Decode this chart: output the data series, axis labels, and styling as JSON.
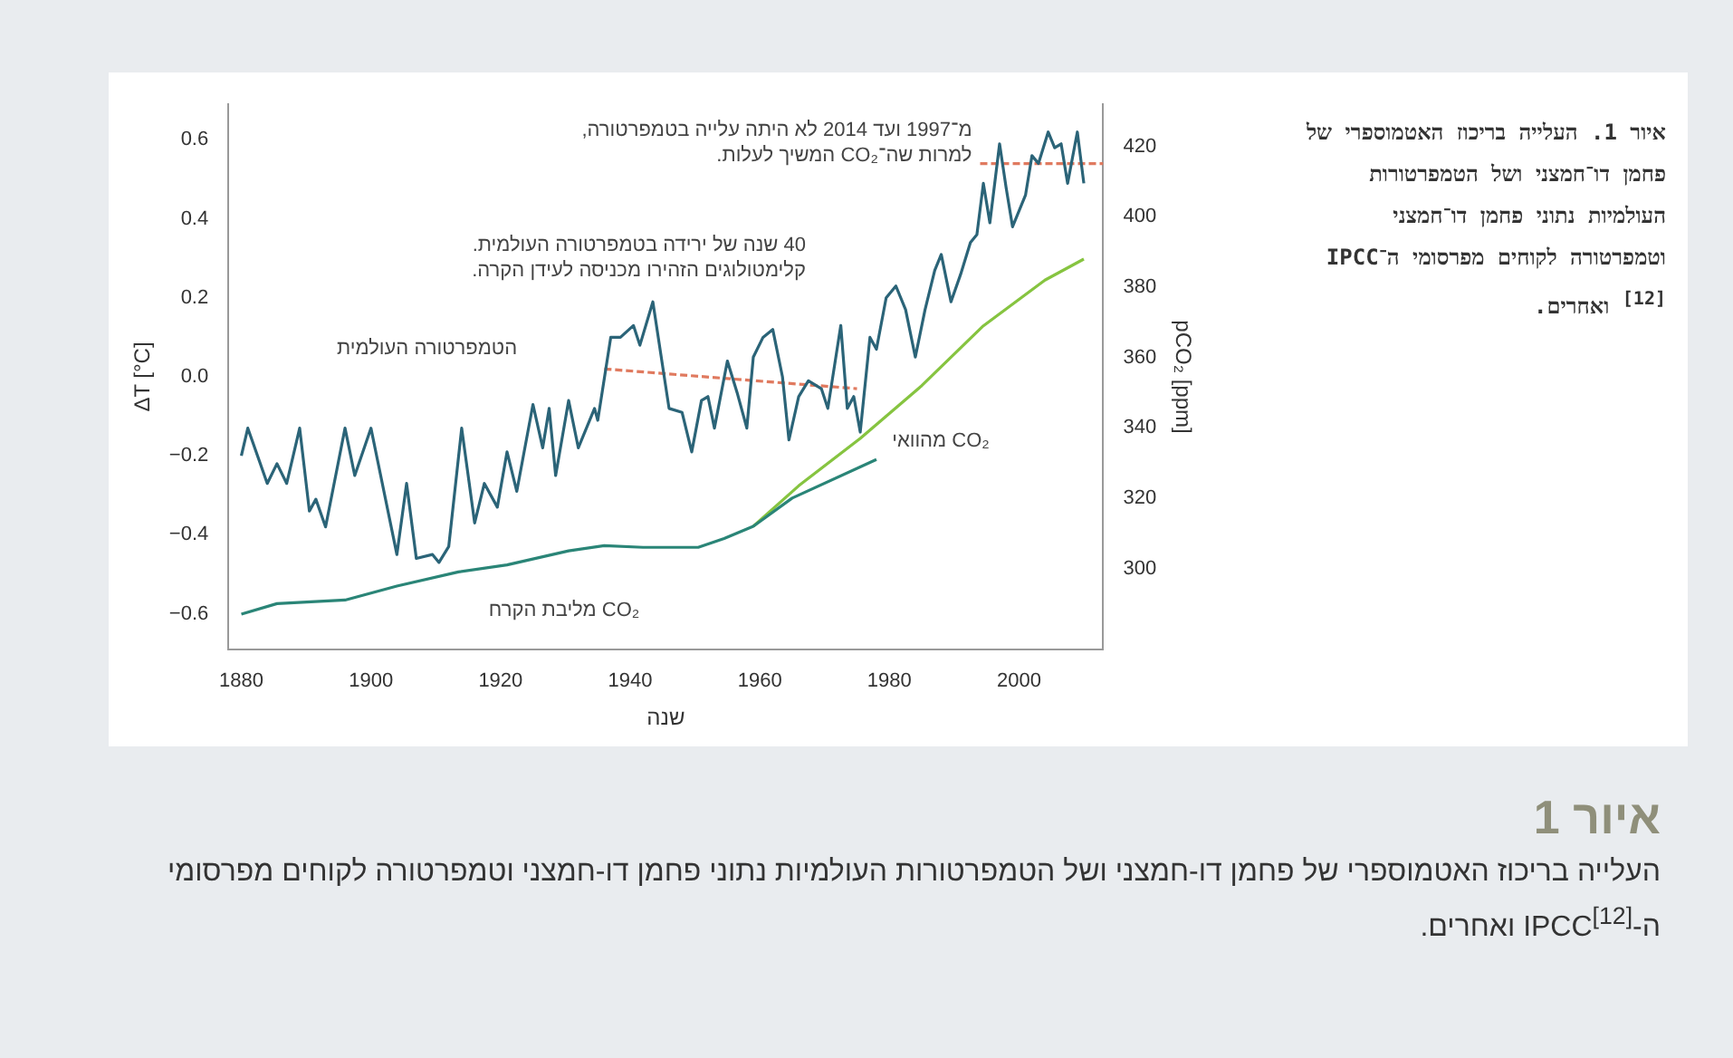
{
  "chart_data": {
    "type": "line",
    "title": "איור 1",
    "subtitle": "העלייה בריכוז האטמוספרי של פחמן דו-חמצני ושל הטמפרטורות העולמיות נתוני פחמן דו-חמצני וטמפרטורה לקוחים מפרסומי ה-$^{[12]}$IPCC ואחרים.",
    "xlabel": "שנה",
    "ylabel": "ΔT [°C]",
    "y2label": "pCO₂ [ppm]",
    "annotations": [
      "מ־1997 ועד 2014 לא היתה עלייה בטמפרטורה,\nלמרות שה־CO₂ המשיך לעלות.",
      "40 שנה של ירידה בטמפרטורה העולמית.\nקלימטולוגים הזהירו מכניסה לעידן הקרה.",
      "איור 1. העלייה בריכוז האטמוספרי של פחמן דו־חמצני ושל הטמפרטורות העולמיות נתוני פחמן דו־חמצני וטמפרטורה לקוחים מפרסומי ה־IPCC $^{[12]}$ ואחרים."
    ],
    "series": [
      {
        "name": "הטמפרטורה העולמית",
        "color": "#2b6478",
        "x": [
          1880,
          1881,
          1884,
          1885.5,
          1887,
          1889,
          1890.5,
          1891.5,
          1893,
          1896,
          1897.5,
          1900,
          1904,
          1905.5,
          1907,
          1909.5,
          1910.5,
          1912,
          1914,
          1916,
          1917.5,
          1919.5,
          1921,
          1922.5,
          1925,
          1926.5,
          1927.5,
          1928.5,
          1930.5,
          1932,
          1934.5,
          1935,
          1937,
          1938.5,
          1940.5,
          1941.5,
          1943.5,
          1946,
          1948,
          1949.5,
          1951,
          1952,
          1953,
          1955,
          1956.5,
          1958,
          1959,
          1960.5,
          1962,
          1963.5,
          1964.5,
          1966,
          1967.5,
          1969.5,
          1970.5,
          1972.5,
          1973.5,
          1974.5,
          1975.5,
          1977,
          1978,
          1979.5,
          1981,
          1982.5,
          1984,
          1985.5,
          1987,
          1988,
          1989.5,
          1991,
          1992.5,
          1993.5,
          1994.5,
          1995.5,
          1997,
          1998,
          1999,
          2001,
          2002,
          2003,
          2004.5,
          2005.5,
          2006.5,
          2007.5,
          2009,
          2010
        ],
        "values": [
          -0.2,
          -0.13,
          -0.27,
          -0.22,
          -0.27,
          -0.13,
          -0.34,
          -0.31,
          -0.38,
          -0.13,
          -0.25,
          -0.13,
          -0.45,
          -0.27,
          -0.46,
          -0.45,
          -0.47,
          -0.43,
          -0.13,
          -0.37,
          -0.27,
          -0.33,
          -0.19,
          -0.29,
          -0.07,
          -0.18,
          -0.08,
          -0.25,
          -0.06,
          -0.18,
          -0.08,
          -0.11,
          0.1,
          0.1,
          0.13,
          0.08,
          0.19,
          -0.08,
          -0.09,
          -0.19,
          -0.06,
          -0.05,
          -0.13,
          0.04,
          -0.04,
          -0.13,
          0.05,
          0.1,
          0.12,
          0,
          -0.16,
          -0.05,
          -0.01,
          -0.03,
          -0.08,
          0.13,
          -0.08,
          -0.05,
          -0.14,
          0.1,
          0.07,
          0.2,
          0.23,
          0.17,
          0.05,
          0.17,
          0.27,
          0.31,
          0.19,
          0.26,
          0.34,
          0.36,
          0.49,
          0.39,
          0.59,
          0.48,
          0.38,
          0.46,
          0.56,
          0.54,
          0.62,
          0.58,
          0.59,
          0.49,
          0.62,
          0.49
        ]
      },
      {
        "name": "CO₂ מליבת הקרח",
        "color": "#2a8577",
        "axis": "y2",
        "x": [
          1880,
          1885.5,
          1896,
          1904,
          1913.5,
          1921,
          1930.5,
          1936,
          1942,
          1950.5,
          1954.5,
          1959,
          1965,
          1978
        ],
        "values": [
          287,
          290,
          291,
          295,
          299,
          301,
          305,
          306.5,
          306,
          306,
          308.5,
          312,
          320,
          331
        ]
      },
      {
        "name": "CO₂ מהוואי",
        "color": "#86c440",
        "axis": "y2",
        "x": [
          1959,
          1966,
          1975.5,
          1985,
          1994.5,
          2004,
          2010
        ],
        "values": [
          312,
          323.5,
          337,
          352,
          369,
          382,
          388
        ]
      },
      {
        "color": "#e07a5f",
        "line_style": "dashed",
        "x": [
          1936,
          1975
        ],
        "values": [
          0.02,
          -0.03
        ]
      },
      {
        "color": "#e07a5f",
        "line_style": "dashed",
        "x": [
          1994,
          2013
        ],
        "values": [
          0.54,
          0.54
        ]
      }
    ],
    "xlim": [
      1878,
      2013
    ],
    "xticks": [
      1880,
      1900,
      1920,
      1940,
      1960,
      1980,
      2000
    ],
    "ylim": [
      -0.69,
      0.69
    ],
    "yticks": [
      {
        "value": -0.6,
        "label": "−0.6"
      },
      {
        "value": -0.4,
        "label": "−0.4"
      },
      {
        "value": -0.2,
        "label": "−0.2"
      },
      {
        "value": 0,
        "label": "0.0"
      },
      0.2,
      0.4,
      0.6
    ],
    "y2lim": [
      277,
      432
    ],
    "y2ticks": [
      300,
      320,
      340,
      360,
      380,
      400,
      420
    ],
    "grid": false,
    "legend": false,
    "marker": "none",
    "line_style": "solid"
  }
}
